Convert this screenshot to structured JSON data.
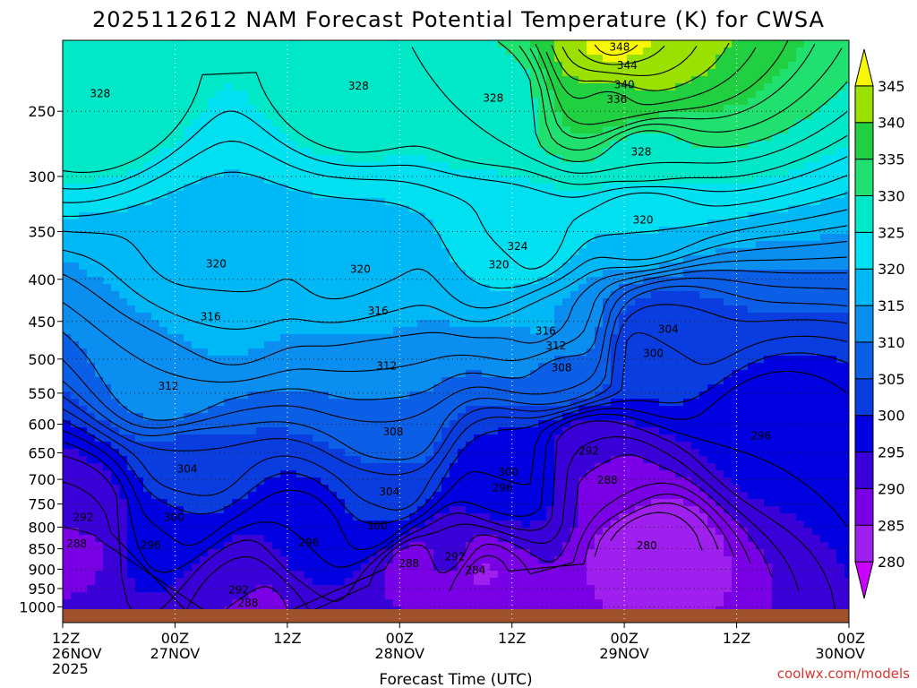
{
  "title": "2025112612 NAM Forecast Potential Temperature (K) for CWSA",
  "credit": "coolwx.com/models",
  "colors": {
    "ground": "#a0522d",
    "contour": "#000000",
    "credit": "#d9362e"
  },
  "chart_data": {
    "type": "heatmap",
    "title": "2025112612 NAM Forecast Potential Temperature (K) for CWSA",
    "xlabel": "Forecast Time (UTC)",
    "ylabel": "",
    "x_ticks": [
      {
        "hour": 0,
        "line1": "12Z",
        "line2": "26NOV",
        "line3": "2025"
      },
      {
        "hour": 12,
        "line1": "00Z",
        "line2": "27NOV",
        "line3": ""
      },
      {
        "hour": 24,
        "line1": "12Z",
        "line2": "",
        "line3": ""
      },
      {
        "hour": 36,
        "line1": "00Z",
        "line2": "28NOV",
        "line3": ""
      },
      {
        "hour": 48,
        "line1": "12Z",
        "line2": "",
        "line3": ""
      },
      {
        "hour": 60,
        "line1": "00Z",
        "line2": "29NOV",
        "line3": ""
      },
      {
        "hour": 72,
        "line1": "12Z",
        "line2": "",
        "line3": ""
      },
      {
        "hour": 84,
        "line1": "00Z",
        "line2": "30NOV",
        "line3": ""
      }
    ],
    "xlim": [
      0,
      84
    ],
    "y_ticks": [
      "250",
      "300",
      "350",
      "400",
      "450",
      "500",
      "550",
      "600",
      "650",
      "700",
      "750",
      "800",
      "850",
      "900",
      "950",
      "1000"
    ],
    "ylim": [
      205,
      1045
    ],
    "y_scale": "log-pressure",
    "grid": "dotted",
    "colorbar": {
      "levels": [
        "280",
        "285",
        "290",
        "295",
        "300",
        "305",
        "310",
        "315",
        "320",
        "325",
        "330",
        "335",
        "340",
        "345"
      ],
      "colors": [
        "#cc00ff",
        "#9f1fee",
        "#7a00e6",
        "#3a00d8",
        "#0000e0",
        "#0a3de0",
        "#0a5fe6",
        "#0a8ef0",
        "#00b8f5",
        "#00e0f0",
        "#00e8c8",
        "#20e070",
        "#20d040",
        "#9ae000",
        "#f8f800"
      ]
    },
    "contour_labels": [
      {
        "text": "348",
        "hour": 59.5,
        "p": 209
      },
      {
        "text": "344",
        "hour": 60.3,
        "p": 220
      },
      {
        "text": "340",
        "hour": 60.0,
        "p": 232
      },
      {
        "text": "336",
        "hour": 59.2,
        "p": 242
      },
      {
        "text": "328",
        "hour": 4.0,
        "p": 238
      },
      {
        "text": "328",
        "hour": 31.6,
        "p": 233
      },
      {
        "text": "328",
        "hour": 46.0,
        "p": 241
      },
      {
        "text": "328",
        "hour": 61.8,
        "p": 280
      },
      {
        "text": "324",
        "hour": 48.6,
        "p": 365
      },
      {
        "text": "320",
        "hour": 16.4,
        "p": 383
      },
      {
        "text": "320",
        "hour": 31.8,
        "p": 389
      },
      {
        "text": "320",
        "hour": 46.6,
        "p": 384
      },
      {
        "text": "320",
        "hour": 62.0,
        "p": 339
      },
      {
        "text": "316",
        "hour": 15.8,
        "p": 444
      },
      {
        "text": "316",
        "hour": 33.7,
        "p": 437
      },
      {
        "text": "316",
        "hour": 51.6,
        "p": 462
      },
      {
        "text": "312",
        "hour": 11.3,
        "p": 539
      },
      {
        "text": "312",
        "hour": 34.6,
        "p": 510
      },
      {
        "text": "312",
        "hour": 52.7,
        "p": 482
      },
      {
        "text": "308",
        "hour": 35.3,
        "p": 613
      },
      {
        "text": "308",
        "hour": 53.3,
        "p": 512
      },
      {
        "text": "304",
        "hour": 13.3,
        "p": 680
      },
      {
        "text": "304",
        "hour": 34.9,
        "p": 725
      },
      {
        "text": "304",
        "hour": 64.7,
        "p": 460
      },
      {
        "text": "300",
        "hour": 11.9,
        "p": 778
      },
      {
        "text": "300",
        "hour": 33.6,
        "p": 797
      },
      {
        "text": "300",
        "hour": 47.6,
        "p": 686
      },
      {
        "text": "300",
        "hour": 63.1,
        "p": 492
      },
      {
        "text": "296",
        "hour": 9.4,
        "p": 841
      },
      {
        "text": "296",
        "hour": 26.3,
        "p": 835
      },
      {
        "text": "296",
        "hour": 47.0,
        "p": 717
      },
      {
        "text": "296",
        "hour": 74.6,
        "p": 620
      },
      {
        "text": "292",
        "hour": 2.2,
        "p": 778
      },
      {
        "text": "292",
        "hour": 18.8,
        "p": 954
      },
      {
        "text": "292",
        "hour": 41.9,
        "p": 869
      },
      {
        "text": "292",
        "hour": 56.2,
        "p": 647
      },
      {
        "text": "288",
        "hour": 1.5,
        "p": 838
      },
      {
        "text": "288",
        "hour": 19.8,
        "p": 989
      },
      {
        "text": "288",
        "hour": 37.0,
        "p": 886
      },
      {
        "text": "288",
        "hour": 58.2,
        "p": 702
      },
      {
        "text": "284",
        "hour": 44.1,
        "p": 902
      },
      {
        "text": "280",
        "hour": 62.4,
        "p": 842
      }
    ]
  }
}
